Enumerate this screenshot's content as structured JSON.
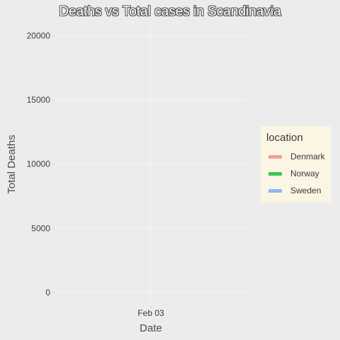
{
  "chart_data": {
    "type": "line",
    "title": "Deaths vs Total cases in Scandinavia",
    "xlabel": "Date",
    "ylabel": "Total Deaths",
    "x_ticks": [
      "Feb 03"
    ],
    "y_ticks": [
      0,
      5000,
      10000,
      15000,
      20000
    ],
    "ylim": [
      -1000,
      20800
    ],
    "grid": true,
    "legend_title": "location",
    "legend_position": "right",
    "series": [
      {
        "name": "Denmark",
        "color": "#f0a096",
        "values": []
      },
      {
        "name": "Norway",
        "color": "#3cc35a",
        "values": []
      },
      {
        "name": "Sweden",
        "color": "#8fb4f5",
        "values": []
      }
    ]
  }
}
